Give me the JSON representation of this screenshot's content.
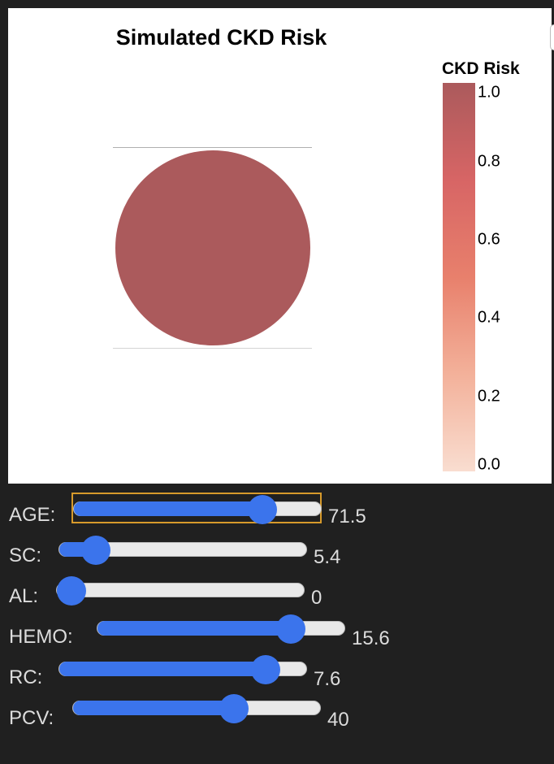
{
  "plot": {
    "title": "Simulated CKD Risk",
    "legend_title": "CKD Risk",
    "marker_color": "#ab5a5c",
    "colorscale": [
      "#f9ddd0",
      "#f3b19a",
      "#e8806c",
      "#d76565",
      "#ab5a5c"
    ],
    "ticks": [
      "1.0",
      "0.8",
      "0.6",
      "0.4",
      "0.2",
      "0.0"
    ]
  },
  "chart_data": {
    "type": "scatter",
    "title": "Simulated CKD Risk",
    "points": [
      {
        "risk": 1.0
      }
    ],
    "colorbar": {
      "title": "CKD Risk",
      "range": [
        0,
        1
      ],
      "ticks": [
        0.0,
        0.2,
        0.4,
        0.6,
        0.8,
        1.0
      ]
    }
  },
  "sliders": [
    {
      "label": "AGE:",
      "value": "71.5",
      "fraction": 0.8
    },
    {
      "label": "SC:",
      "value": "5.4",
      "fraction": 0.1
    },
    {
      "label": "AL:",
      "value": "0",
      "fraction": 0.0
    },
    {
      "label": "HEMO:",
      "value": "15.6",
      "fraction": 0.82
    },
    {
      "label": "RC:",
      "value": "7.6",
      "fraction": 0.88
    },
    {
      "label": "PCV:",
      "value": "40",
      "fraction": 0.67
    }
  ]
}
